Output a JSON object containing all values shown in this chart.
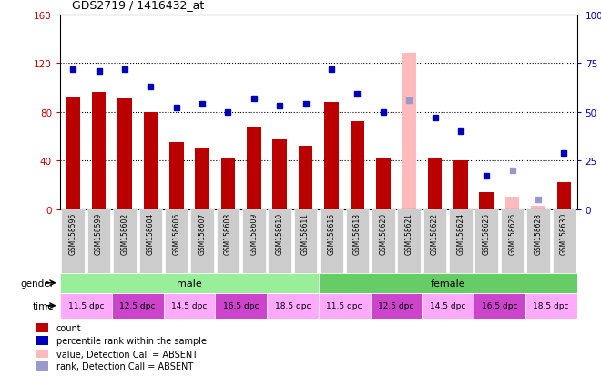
{
  "title": "GDS2719 / 1416432_at",
  "samples": [
    "GSM158596",
    "GSM158599",
    "GSM158602",
    "GSM158604",
    "GSM158606",
    "GSM158607",
    "GSM158608",
    "GSM158609",
    "GSM158610",
    "GSM158611",
    "GSM158616",
    "GSM158618",
    "GSM158620",
    "GSM158621",
    "GSM158622",
    "GSM158624",
    "GSM158625",
    "GSM158626",
    "GSM158628",
    "GSM158630"
  ],
  "count_values": [
    92,
    96,
    91,
    80,
    55,
    50,
    42,
    68,
    57,
    52,
    88,
    72,
    42,
    null,
    42,
    40,
    14,
    null,
    null,
    22
  ],
  "count_absent": [
    null,
    null,
    null,
    null,
    null,
    null,
    null,
    null,
    null,
    null,
    null,
    null,
    null,
    128,
    null,
    null,
    null,
    10,
    3,
    null
  ],
  "percentile_values": [
    72,
    71,
    72,
    63,
    52,
    54,
    50,
    57,
    53,
    54,
    72,
    59,
    50,
    null,
    47,
    40,
    17,
    null,
    null,
    29
  ],
  "percentile_absent": [
    null,
    null,
    null,
    null,
    null,
    null,
    null,
    null,
    null,
    null,
    null,
    null,
    null,
    56,
    null,
    null,
    null,
    20,
    5,
    null
  ],
  "left_ylim": [
    0,
    160
  ],
  "left_yticks": [
    0,
    40,
    80,
    120,
    160
  ],
  "right_ylim": [
    0,
    100
  ],
  "right_yticks": [
    0,
    25,
    50,
    75,
    100
  ],
  "left_tick_color": "#cc0000",
  "right_tick_color": "#0000cc",
  "bar_color": "#bb0000",
  "bar_absent_color": "#ffbbbb",
  "dot_color": "#0000bb",
  "dot_absent_color": "#9999cc",
  "gender_male_color": "#99ee99",
  "gender_female_color": "#66cc66",
  "time_colors": [
    "#ffaaff",
    "#cc44cc",
    "#ffaaff",
    "#cc44cc",
    "#ffaaff"
  ],
  "time_labels": [
    "11.5 dpc",
    "12.5 dpc",
    "14.5 dpc",
    "16.5 dpc",
    "18.5 dpc"
  ],
  "legend_items": [
    {
      "label": "count",
      "color": "#bb0000"
    },
    {
      "label": "percentile rank within the sample",
      "color": "#0000bb"
    },
    {
      "label": "value, Detection Call = ABSENT",
      "color": "#ffbbbb"
    },
    {
      "label": "rank, Detection Call = ABSENT",
      "color": "#9999cc"
    }
  ]
}
